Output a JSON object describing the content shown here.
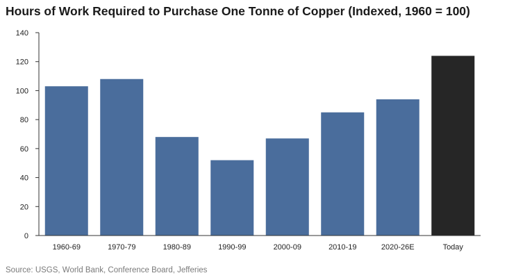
{
  "title": "Hours of Work Required to Purchase One Tonne of Copper (Indexed, 1960 = 100)",
  "source": "Source: USGS, World Bank, Conference Board, Jefferies",
  "colors": {
    "bar": "#4a6d9c",
    "highlight": "#262626",
    "axis": "#333333"
  },
  "chart_data": {
    "type": "bar",
    "title": "Hours of Work Required to Purchase One Tonne of Copper (Indexed, 1960 = 100)",
    "xlabel": "",
    "ylabel": "",
    "categories": [
      "1960-69",
      "1970-79",
      "1980-89",
      "1990-99",
      "2000-09",
      "2010-19",
      "2020-26E",
      "Today"
    ],
    "values": [
      103,
      108,
      68,
      52,
      67,
      85,
      94,
      124
    ],
    "highlight_category": "Today",
    "ylim": [
      0,
      140
    ],
    "yticks": [
      0,
      20,
      40,
      60,
      80,
      100,
      120,
      140
    ],
    "grid": false,
    "legend": "none"
  }
}
